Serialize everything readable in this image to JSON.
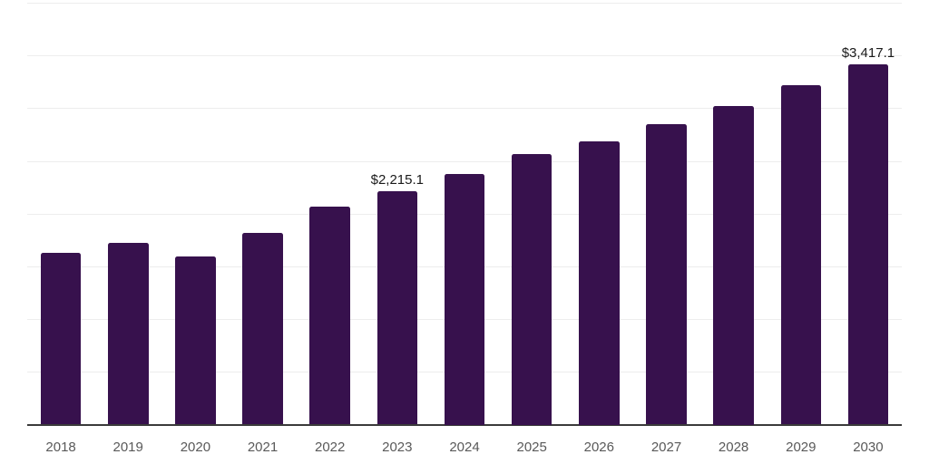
{
  "colors": {
    "bar": "#37114D",
    "axis_line": "#3a3a3a",
    "gridline": "#ededed",
    "tick_label": "#595959",
    "data_label": "#1a1a1a",
    "background": "#ffffff"
  },
  "chart_data": {
    "type": "bar",
    "title": "",
    "xlabel": "",
    "ylabel": "",
    "categories": [
      "2018",
      "2019",
      "2020",
      "2021",
      "2022",
      "2023",
      "2024",
      "2025",
      "2026",
      "2027",
      "2028",
      "2029",
      "2030"
    ],
    "values": [
      1625,
      1720,
      1595,
      1815,
      2070,
      2215.1,
      2380,
      2565,
      2690,
      2845,
      3020,
      3215,
      3417.1
    ],
    "data_labels": {
      "2023": "$2,215.1",
      "2030": "$3,417.1"
    },
    "ylim": [
      0,
      4000
    ],
    "ytick_step": 500,
    "y_axis_labels_visible": false,
    "grid": "horizontal",
    "legend": "none",
    "bar_color": "#37114D"
  }
}
